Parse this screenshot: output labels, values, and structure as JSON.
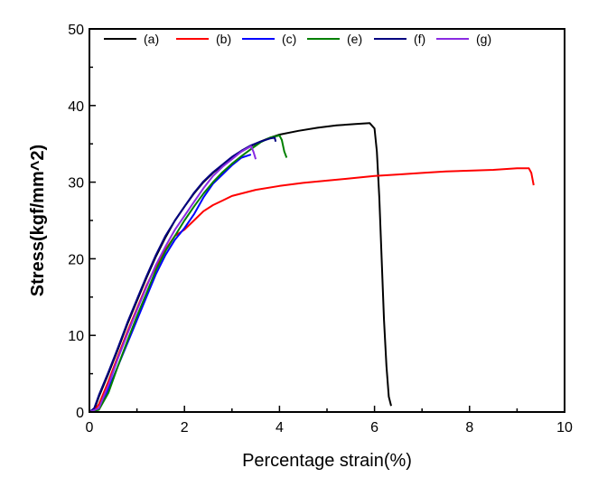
{
  "chart_data": {
    "type": "line",
    "title": "",
    "xlabel": "Percentage strain(%)",
    "ylabel": "Stress(kgf/mm^2)",
    "xlim": [
      0,
      10
    ],
    "ylim": [
      0,
      50
    ],
    "xticks": [
      "0",
      "2",
      "4",
      "6",
      "8",
      "10"
    ],
    "yticks": [
      "0",
      "10",
      "20",
      "30",
      "40",
      "50"
    ],
    "grid": false,
    "legend_position": "top",
    "series": [
      {
        "name": "(a)",
        "color": "#000000",
        "x": [
          0,
          0.1,
          0.2,
          0.4,
          0.6,
          0.8,
          1.0,
          1.2,
          1.4,
          1.6,
          1.8,
          2.0,
          2.2,
          2.4,
          2.6,
          2.8,
          3.0,
          3.2,
          3.4,
          3.6,
          3.8,
          4.0,
          4.4,
          4.8,
          5.2,
          5.6,
          5.9,
          6.0,
          6.05,
          6.1,
          6.15,
          6.2,
          6.25,
          6.3,
          6.35
        ],
        "y": [
          0,
          0.3,
          2,
          5,
          8.2,
          11.5,
          14.5,
          17.5,
          20.3,
          22.8,
          25,
          26.8,
          28.5,
          30,
          31.2,
          32.2,
          33.2,
          34,
          34.7,
          35.3,
          35.8,
          36.2,
          36.7,
          37.1,
          37.4,
          37.6,
          37.7,
          37,
          34,
          28,
          20,
          12,
          6,
          2,
          0.8
        ]
      },
      {
        "name": "(b)",
        "color": "#ff0000",
        "x": [
          0,
          0.1,
          0.2,
          0.4,
          0.6,
          0.8,
          1.0,
          1.2,
          1.4,
          1.6,
          1.8,
          2.0,
          2.2,
          2.4,
          2.6,
          2.8,
          3.0,
          3.5,
          4.0,
          4.5,
          5.0,
          5.5,
          6.0,
          6.5,
          7.0,
          7.5,
          8.0,
          8.5,
          9.0,
          9.25,
          9.3,
          9.35
        ],
        "y": [
          0,
          0.2,
          1,
          4,
          7.3,
          10.5,
          13.5,
          16.5,
          19,
          21.2,
          23,
          23.8,
          25,
          26.2,
          27,
          27.6,
          28.2,
          29,
          29.5,
          29.9,
          30.2,
          30.5,
          30.8,
          31,
          31.2,
          31.4,
          31.5,
          31.6,
          31.8,
          31.8,
          31.2,
          29.6
        ]
      },
      {
        "name": "(c)",
        "color": "#0000ff",
        "x": [
          0,
          0.2,
          0.4,
          0.6,
          0.8,
          1.0,
          1.2,
          1.4,
          1.6,
          1.8,
          2.0,
          2.2,
          2.4,
          2.6,
          2.8,
          3.0,
          3.2,
          3.4
        ],
        "y": [
          0,
          0.5,
          3,
          6,
          9,
          12,
          15,
          18,
          20.5,
          22.5,
          24,
          25.8,
          28,
          29.8,
          31,
          32.2,
          33.2,
          33.6
        ]
      },
      {
        "name": "(e)",
        "color": "#008000",
        "x": [
          0,
          0.2,
          0.4,
          0.6,
          0.8,
          1.0,
          1.2,
          1.4,
          1.6,
          1.8,
          2.0,
          2.2,
          2.4,
          2.6,
          2.8,
          3.0,
          3.2,
          3.4,
          3.6,
          3.8,
          4.0,
          4.05,
          4.1,
          4.15
        ],
        "y": [
          0,
          0.3,
          2.5,
          6,
          9.3,
          12.5,
          15.5,
          18.5,
          21,
          23,
          25,
          26.8,
          28.5,
          30,
          31.3,
          32.4,
          33.4,
          34.3,
          35.2,
          35.8,
          36.1,
          35.5,
          34,
          33.2
        ]
      },
      {
        "name": "(f)",
        "color": "#000080",
        "x": [
          0,
          0.1,
          0.2,
          0.4,
          0.6,
          0.8,
          1.0,
          1.2,
          1.4,
          1.6,
          1.8,
          2.0,
          2.2,
          2.4,
          2.6,
          2.8,
          3.0,
          3.2,
          3.4,
          3.6,
          3.8,
          3.9,
          3.92
        ],
        "y": [
          0,
          0.5,
          2.2,
          5.2,
          8.4,
          11.7,
          14.7,
          17.7,
          20.5,
          23,
          25,
          26.8,
          28.6,
          30.1,
          31.3,
          32.3,
          33.3,
          34.1,
          34.8,
          35.3,
          35.7,
          35.8,
          35.3
        ]
      },
      {
        "name": "(g)",
        "color": "#8a2be2",
        "x": [
          0,
          0.2,
          0.4,
          0.6,
          0.8,
          1.0,
          1.2,
          1.4,
          1.6,
          1.8,
          2.0,
          2.2,
          2.4,
          2.6,
          2.8,
          3.0,
          3.2,
          3.4,
          3.45,
          3.5
        ],
        "y": [
          0,
          0.5,
          3.5,
          7,
          10.2,
          13.3,
          16.3,
          19.2,
          21.6,
          23.8,
          25.6,
          27.4,
          29.2,
          30.8,
          32,
          33,
          34,
          34.7,
          34,
          33
        ]
      }
    ]
  }
}
